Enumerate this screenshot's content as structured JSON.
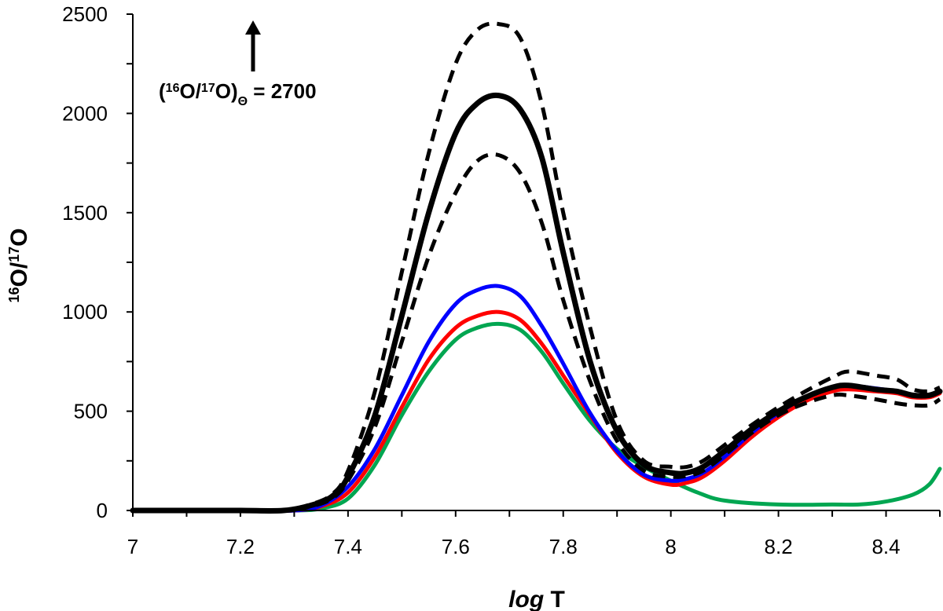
{
  "chart_data": {
    "type": "line",
    "xlabel": {
      "italic": "log",
      "rest": " T"
    },
    "ylabel": {
      "sup1": "16",
      "mid": "O/",
      "sup2": "17",
      "tail": "O"
    },
    "xlim": [
      7,
      8.5
    ],
    "ylim": [
      0,
      2500
    ],
    "x_ticks": [
      "7",
      "7.2",
      "7.4",
      "7.6",
      "7.8",
      "8",
      "8.2",
      "8.4"
    ],
    "y_ticks": [
      "0",
      "500",
      "1000",
      "1500",
      "2000",
      "2500"
    ],
    "grid": false,
    "annotation": {
      "open": "(",
      "sup1": "16",
      "mid": "O/",
      "sup2": "17",
      "close": "O)",
      "sub": "Θ",
      "tail": " = 2700",
      "arrow": "up-arrow"
    },
    "series": [
      {
        "style": "dashed",
        "color": "#000000",
        "x": [
          7.0,
          7.1,
          7.2,
          7.28,
          7.33,
          7.37,
          7.4,
          7.45,
          7.5,
          7.55,
          7.6,
          7.64,
          7.68,
          7.72,
          7.76,
          7.8,
          7.85,
          7.9,
          7.95,
          8.0,
          8.03,
          8.06,
          8.1,
          8.15,
          8.2,
          8.25,
          8.3,
          8.33,
          8.38,
          8.42,
          8.45,
          8.48,
          8.5
        ],
        "y": [
          0,
          0,
          0,
          0,
          30,
          80,
          200,
          600,
          1200,
          1800,
          2250,
          2420,
          2450,
          2380,
          2050,
          1500,
          920,
          450,
          250,
          220,
          220,
          250,
          330,
          430,
          520,
          600,
          670,
          700,
          680,
          660,
          610,
          600,
          620
        ]
      },
      {
        "style": "solid-thick",
        "color": "#000000",
        "x": [
          7.0,
          7.1,
          7.2,
          7.28,
          7.33,
          7.37,
          7.4,
          7.45,
          7.5,
          7.55,
          7.6,
          7.64,
          7.68,
          7.72,
          7.76,
          7.8,
          7.85,
          7.9,
          7.95,
          8.0,
          8.03,
          8.06,
          8.1,
          8.15,
          8.2,
          8.25,
          8.3,
          8.33,
          8.38,
          8.42,
          8.45,
          8.48,
          8.5
        ],
        "y": [
          0,
          0,
          0,
          0,
          25,
          70,
          170,
          480,
          980,
          1500,
          1900,
          2050,
          2090,
          2020,
          1780,
          1300,
          750,
          400,
          230,
          190,
          190,
          220,
          300,
          410,
          500,
          570,
          620,
          630,
          610,
          600,
          580,
          580,
          600
        ]
      },
      {
        "style": "dashed",
        "color": "#000000",
        "x": [
          7.0,
          7.1,
          7.2,
          7.28,
          7.33,
          7.37,
          7.4,
          7.45,
          7.5,
          7.55,
          7.6,
          7.64,
          7.68,
          7.72,
          7.76,
          7.8,
          7.85,
          7.9,
          7.95,
          8.0,
          8.03,
          8.06,
          8.1,
          8.15,
          8.2,
          8.25,
          8.3,
          8.33,
          8.38,
          8.42,
          8.45,
          8.48,
          8.5
        ],
        "y": [
          0,
          0,
          0,
          0,
          20,
          60,
          150,
          420,
          850,
          1280,
          1600,
          1760,
          1790,
          1700,
          1450,
          1060,
          650,
          350,
          200,
          170,
          175,
          200,
          280,
          390,
          480,
          540,
          580,
          580,
          560,
          540,
          530,
          530,
          560
        ]
      },
      {
        "style": "solid",
        "color": "#ff0000",
        "x": [
          7.0,
          7.1,
          7.2,
          7.3,
          7.35,
          7.4,
          7.45,
          7.5,
          7.55,
          7.6,
          7.64,
          7.68,
          7.72,
          7.76,
          7.8,
          7.85,
          7.9,
          7.95,
          8.0,
          8.03,
          8.06,
          8.1,
          8.15,
          8.2,
          8.25,
          8.3,
          8.33,
          8.38,
          8.42,
          8.45,
          8.48,
          8.5
        ],
        "y": [
          0,
          0,
          0,
          0,
          20,
          90,
          270,
          520,
          760,
          920,
          980,
          1000,
          960,
          840,
          680,
          480,
          290,
          170,
          130,
          140,
          170,
          250,
          370,
          470,
          550,
          600,
          610,
          600,
          590,
          570,
          570,
          590
        ]
      },
      {
        "style": "solid",
        "color": "#0000ff",
        "x": [
          7.0,
          7.1,
          7.2,
          7.3,
          7.35,
          7.4,
          7.45,
          7.5,
          7.55,
          7.6,
          7.64,
          7.68,
          7.72,
          7.76,
          7.8,
          7.85,
          7.9,
          7.95,
          8.0,
          8.03,
          8.06,
          8.1,
          8.15,
          8.2,
          8.25,
          8.3,
          8.33,
          8.38,
          8.42,
          8.45,
          8.48,
          8.5
        ],
        "y": [
          0,
          0,
          0,
          0,
          25,
          120,
          310,
          580,
          850,
          1040,
          1110,
          1130,
          1080,
          930,
          740,
          490,
          300,
          180,
          150,
          160,
          190,
          270,
          390,
          490,
          570,
          620,
          630,
          615,
          600,
          580,
          580,
          600
        ]
      },
      {
        "style": "solid",
        "color": "#00a651",
        "x": [
          7.0,
          7.1,
          7.2,
          7.3,
          7.35,
          7.4,
          7.45,
          7.5,
          7.55,
          7.6,
          7.64,
          7.68,
          7.72,
          7.76,
          7.8,
          7.85,
          7.9,
          7.95,
          8.0,
          8.05,
          8.1,
          8.2,
          8.3,
          8.35,
          8.4,
          8.45,
          8.48,
          8.5
        ],
        "y": [
          0,
          0,
          0,
          0,
          10,
          60,
          230,
          480,
          700,
          860,
          920,
          940,
          910,
          800,
          640,
          450,
          310,
          220,
          150,
          90,
          50,
          30,
          30,
          30,
          45,
          80,
          130,
          210
        ]
      }
    ]
  }
}
